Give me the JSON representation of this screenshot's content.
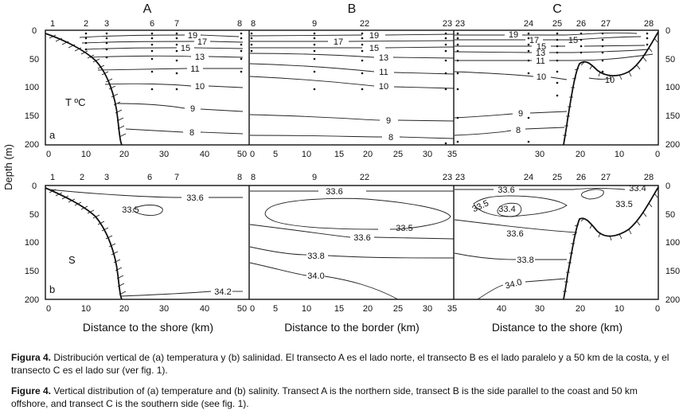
{
  "figure": {
    "column_letters": [
      "A",
      "B",
      "C"
    ],
    "station_labels": {
      "A": [
        "1",
        "2",
        "3",
        "6",
        "7",
        "8"
      ],
      "B": [
        "8",
        "9",
        "22",
        "23"
      ],
      "C": [
        "23",
        "24",
        "25",
        "26",
        "27",
        "28"
      ]
    },
    "y_axis_label": "Depth (m)",
    "depth_ticks": [
      "0",
      "50",
      "100",
      "150",
      "200"
    ],
    "panel_a_labels": {
      "variable": "T ºC",
      "letter": "a"
    },
    "panel_b_labels": {
      "variable": "S",
      "letter": "b"
    },
    "x_ticks": {
      "A": [
        "0",
        "10",
        "20",
        "30",
        "40",
        "50"
      ],
      "B": [
        "0",
        "5",
        "10",
        "15",
        "20",
        "25",
        "30",
        "35"
      ],
      "C": [
        "35",
        "30",
        "20",
        "10",
        "0"
      ]
    },
    "x_ticks_c_full": [
      "40",
      "30",
      "20",
      "10",
      "0"
    ],
    "x_axis_labels": {
      "A": "Distance to the shore (km)",
      "B": "Distance to the border (km)",
      "C": "Distance to the shore (km)"
    },
    "temperature_contours": [
      "19",
      "17",
      "15",
      "13",
      "11",
      "10",
      "9",
      "8"
    ],
    "temperature_inline": {
      "A": [
        "19",
        "17",
        "15",
        "13",
        "11",
        "10",
        "9",
        "8"
      ],
      "B": [
        "17",
        "19",
        "15",
        "13",
        "11",
        "10",
        "9",
        "8"
      ],
      "C": [
        "19",
        "17",
        "15",
        "13",
        "11",
        "10",
        "10",
        "9",
        "8"
      ]
    },
    "salinity_contours": {
      "A": [
        "33.6",
        "33.5",
        "34.2"
      ],
      "B": [
        "33.6",
        "33.5",
        "33.6",
        "33.8",
        "34.0"
      ],
      "C": [
        "33.6",
        "33.4",
        "33.5",
        "33.4",
        "33.5",
        "33.6",
        "33.8",
        "34.0"
      ]
    }
  },
  "caption": {
    "es_label": "Figura 4.",
    "es_text": " Distribución vertical de (a) temperatura y (b) salinidad. El transecto A es el lado norte, el transecto B es el lado paralelo y a 50 km de la costa, y el transecto C es el lado sur (ver fig. 1).",
    "en_label": "Figure 4.",
    "en_text": " Vertical distribution of (a) temperature and (b) salinity. Transect A is the northern side, transect B is the side parallel to the coast and 50 km offshore, and transect C is the southern side (see fig. 1)."
  }
}
